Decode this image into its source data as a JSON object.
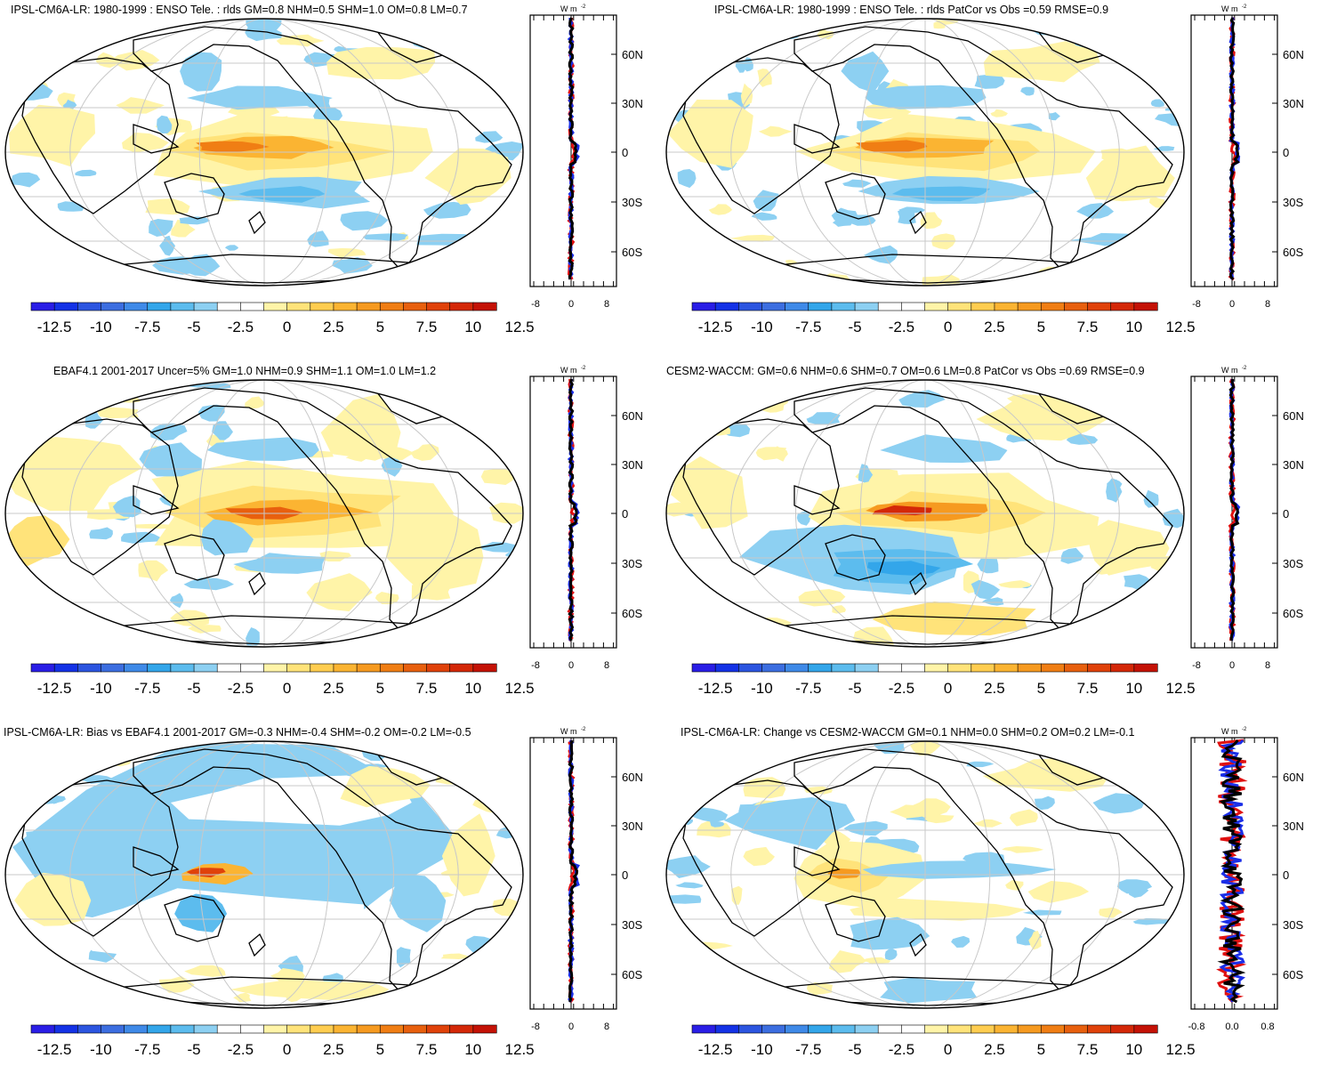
{
  "colorbar": {
    "labels": [
      "-12.5",
      "-10",
      "-7.5",
      "-5",
      "-2.5",
      "0",
      "2.5",
      "5",
      "7.5",
      "10",
      "12.5"
    ],
    "colors": [
      "#2a1ee6",
      "#1432e6",
      "#2c55e0",
      "#3c6ee0",
      "#3f8ae8",
      "#33a6ea",
      "#5cbcee",
      "#8dd0f2",
      "#ffffff",
      "#ffffff",
      "#fff4a8",
      "#ffe37a",
      "#ffcd50",
      "#fbb432",
      "#f69a20",
      "#f07e14",
      "#e8600e",
      "#e0420a",
      "#d42808",
      "#c41206"
    ]
  },
  "meridional_axis": {
    "lat_labels": [
      "60N",
      "30N",
      "0",
      "30S",
      "60S"
    ],
    "unit_label": "W m",
    "unit_sup": "-2"
  },
  "panels": [
    {
      "title": "IPSL-CM6A-LR: 1980-1999 : ENSO Tele. : rlds GM=0.8 NHM=0.5 SHM=1.0 OM=0.8 LM=0.7",
      "x_ticks": [
        "-8",
        "0",
        "8"
      ],
      "map_pattern": "model-enso-1"
    },
    {
      "title": "IPSL-CM6A-LR: 1980-1999 : ENSO Tele. : rlds PatCor vs Obs =0.59 RMSE=0.9",
      "x_ticks": [
        "-8",
        "0",
        "8"
      ],
      "map_pattern": "model-enso-1"
    },
    {
      "title": "EBAF4.1 2001-2017 Uncer=5% GM=1.0 NHM=0.9 SHM=1.1 OM=1.0 LM=1.2",
      "x_ticks": [
        "-8",
        "0",
        "8"
      ],
      "map_pattern": "obs-enso"
    },
    {
      "title": "CESM2-WACCM: GM=0.6 NHM=0.6 SHM=0.7 OM=0.6 LM=0.8 PatCor vs Obs =0.69 RMSE=0.9",
      "x_ticks": [
        "-8",
        "0",
        "8"
      ],
      "map_pattern": "model-enso-2"
    },
    {
      "title": "IPSL-CM6A-LR: Bias vs EBAF4.1 2001-2017 GM=-0.3 NHM=-0.4 SHM=-0.2 OM=-0.2 LM=-0.5",
      "x_ticks": [
        "-8",
        "0",
        "8"
      ],
      "map_pattern": "bias"
    },
    {
      "title": "IPSL-CM6A-LR: Change vs CESM2-WACCM GM=0.1 NHM=0.0 SHM=0.2 OM=0.2 LM=-0.1",
      "x_ticks": [
        "-0.8",
        "0.0",
        "0.8"
      ],
      "map_pattern": "change"
    }
  ]
}
